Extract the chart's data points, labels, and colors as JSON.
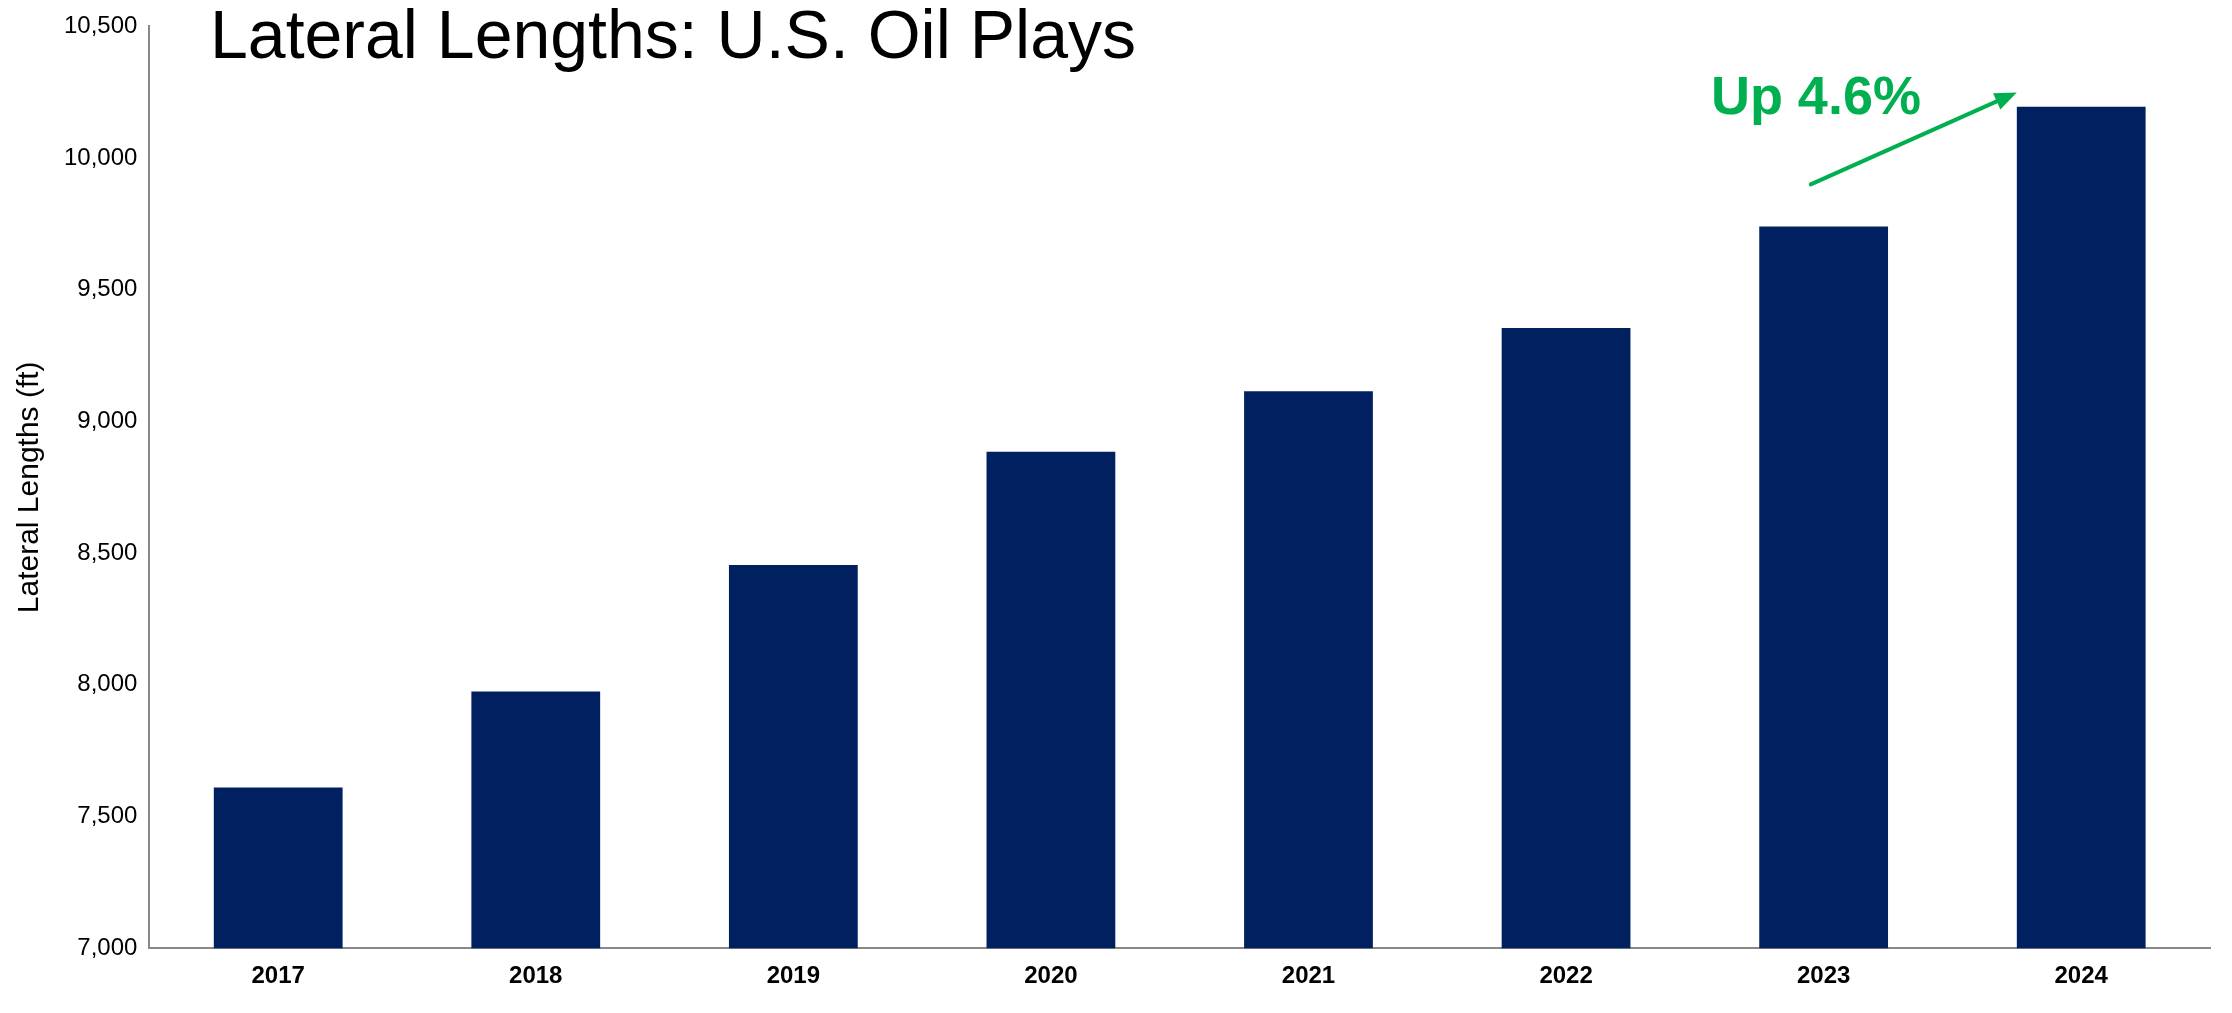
{
  "chart_data": {
    "type": "bar",
    "title": "Lateral Lengths: U.S. Oil Plays",
    "ylabel": "Lateral Lengths (ft)",
    "categories": [
      "2017",
      "2018",
      "2019",
      "2020",
      "2021",
      "2022",
      "2023",
      "2024"
    ],
    "values": [
      7610,
      7975,
      8455,
      8885,
      9115,
      9355,
      9740,
      10195
    ],
    "color": "#002060",
    "ylim": [
      7000,
      10500
    ],
    "yticks": [
      {
        "value": 7000,
        "label": "7,000"
      },
      {
        "value": 7500,
        "label": "7,500"
      },
      {
        "value": 8000,
        "label": "8,000"
      },
      {
        "value": 8500,
        "label": "8,500"
      },
      {
        "value": 9000,
        "label": "9,000"
      },
      {
        "value": 9500,
        "label": "9,500"
      },
      {
        "value": 10000,
        "label": "10,000"
      },
      {
        "value": 10500,
        "label": "10,500"
      }
    ],
    "grid": false,
    "annotations": [
      "Up 4.6%"
    ]
  }
}
